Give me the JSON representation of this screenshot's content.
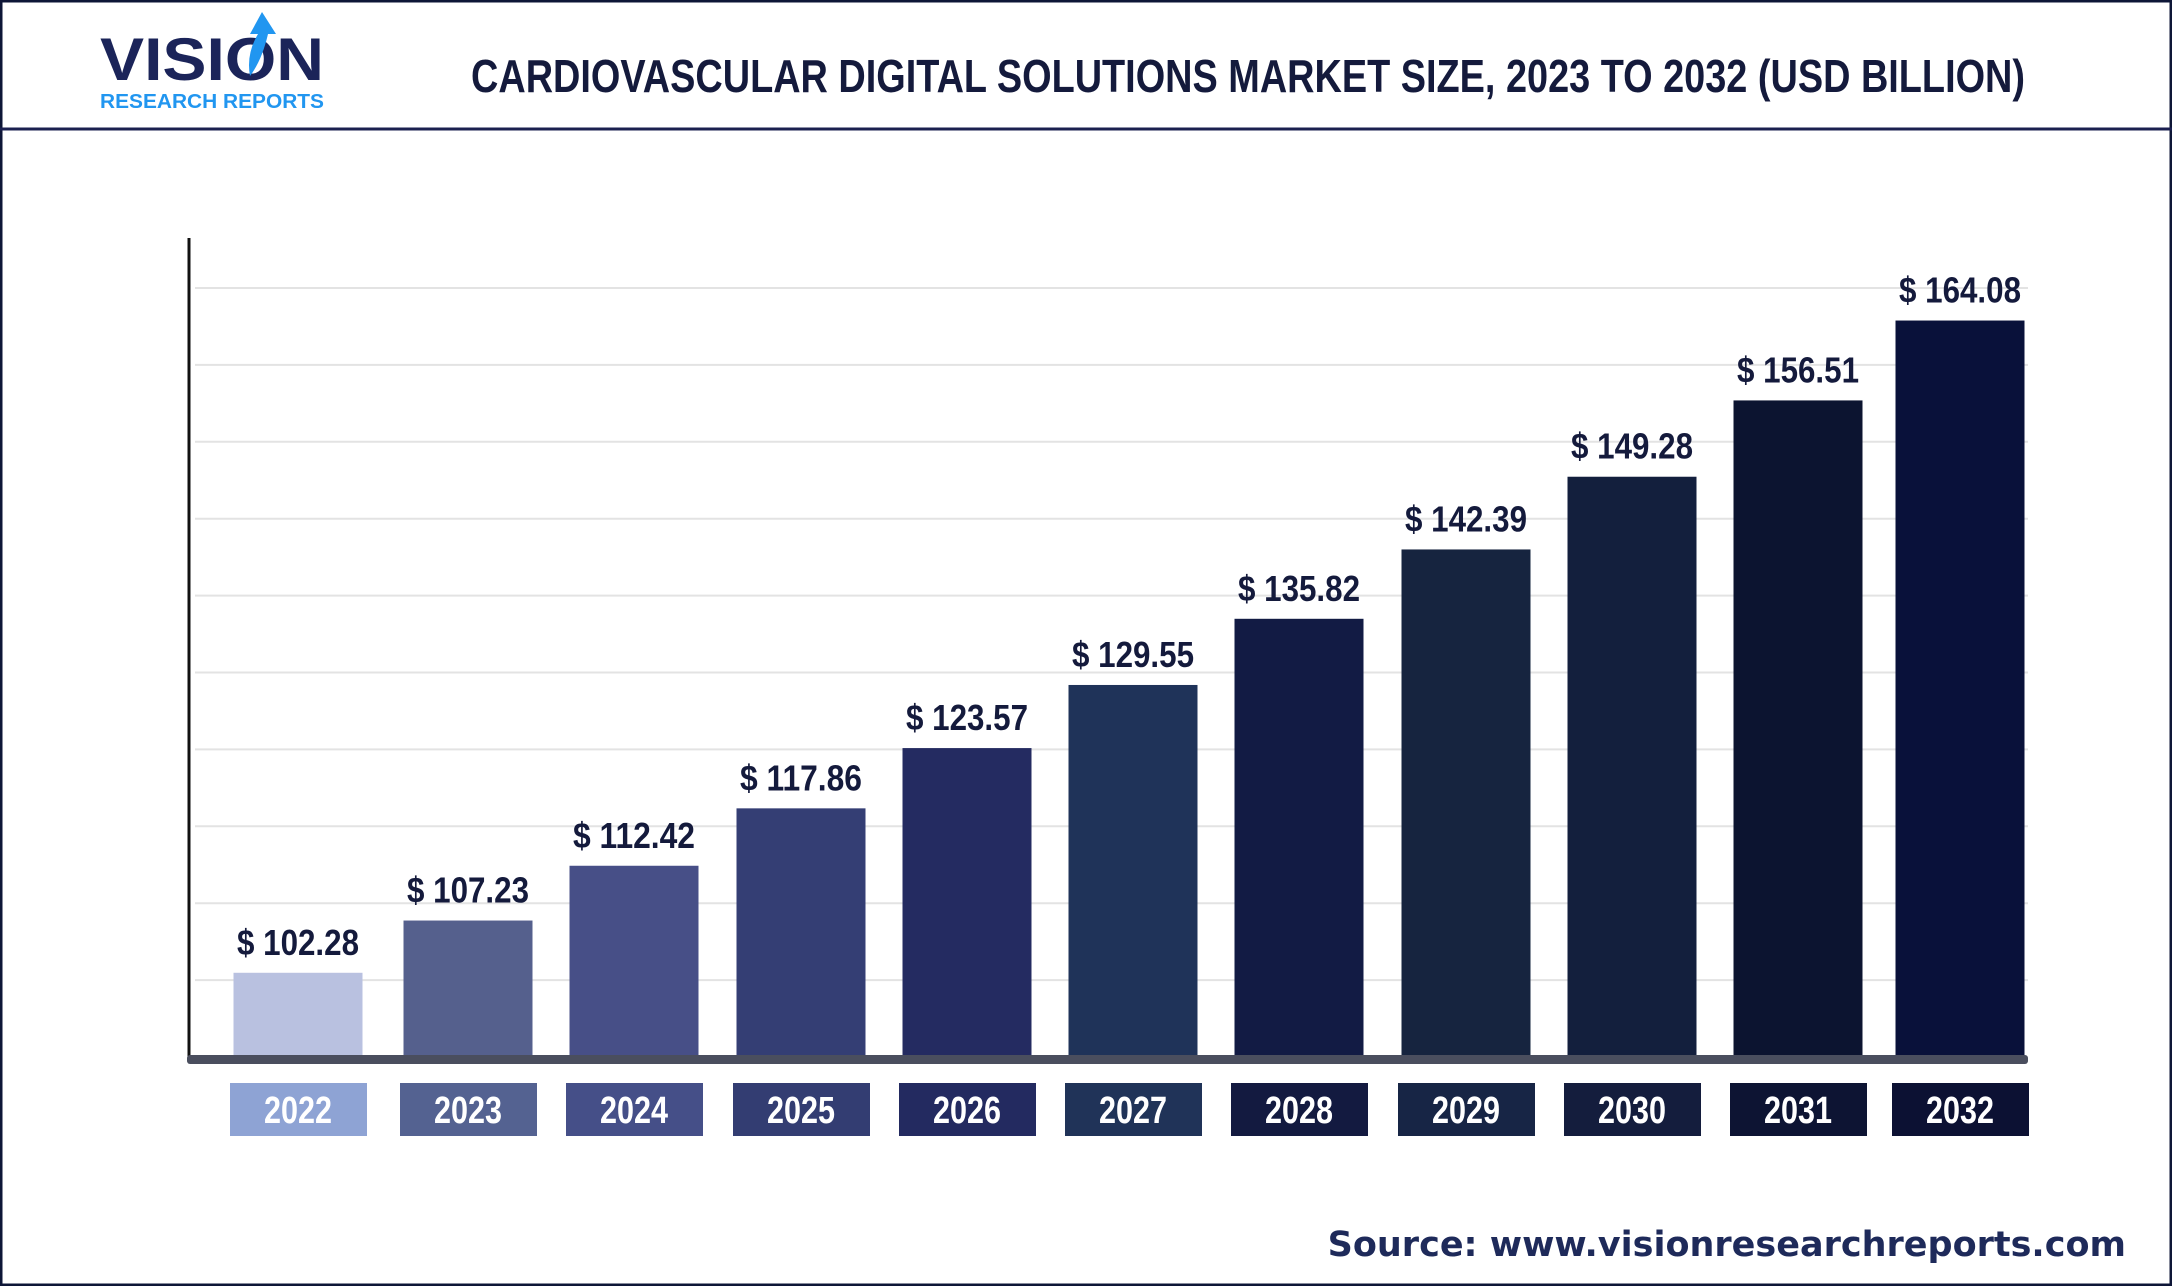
{
  "logo": {
    "word": "VISION",
    "tagline": "RESEARCH REPORTS",
    "colors": {
      "word": "#1b2459",
      "tagline": "#2196f0"
    }
  },
  "title": "CARDIOVASCULAR DIGITAL SOLUTIONS MARKET SIZE, 2023 TO 2032 (USD BILLION)",
  "source": "Source: www.visionresearchreports.com",
  "chart_data": {
    "type": "bar",
    "title": "CARDIOVASCULAR DIGITAL SOLUTIONS MARKET SIZE, 2023 TO 2032 (USD BILLION)",
    "xlabel": "",
    "ylabel": "",
    "categories": [
      "2022",
      "2023",
      "2024",
      "2025",
      "2026",
      "2027",
      "2028",
      "2029",
      "2030",
      "2031",
      "2032"
    ],
    "values": [
      102.28,
      107.23,
      112.42,
      117.86,
      123.57,
      129.55,
      135.82,
      142.39,
      149.28,
      156.51,
      164.08
    ],
    "value_labels": [
      "$ 102.28",
      "$ 107.23",
      "$ 112.42",
      "$ 117.86",
      "$ 123.57",
      "$ 129.55",
      "$ 135.82",
      "$ 142.39",
      "$ 149.28",
      "$ 156.51",
      "$ 164.08"
    ],
    "ylim": [
      94.3,
      171.9
    ],
    "grid": true,
    "legend": "none",
    "bar_colors": [
      "#b9c1e0",
      "#55608d",
      "#474f87",
      "#343e74",
      "#242b61",
      "#1f3359",
      "#121b44",
      "#16243f",
      "#131f3d",
      "#0c1430",
      "#09113a"
    ],
    "label_box_colors": [
      "#8ea3d4",
      "#546291",
      "#454f88",
      "#333d72",
      "#232a60",
      "#203358",
      "#131a40",
      "#172545",
      "#141d3d",
      "#0d1433",
      "#0c1133"
    ]
  }
}
